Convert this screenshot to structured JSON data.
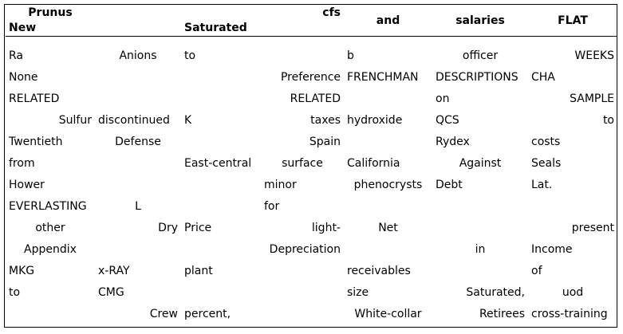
{
  "table": {
    "header_top": [
      "Prunus",
      "",
      "",
      "cfs",
      "and",
      "salaries",
      "FLAT"
    ],
    "header_bottom": [
      "New",
      "",
      "Saturated",
      "",
      "",
      "",
      ""
    ],
    "rows": [
      [
        "Ra",
        "Anions",
        "to",
        "",
        "b",
        "officer",
        "WEEKS"
      ],
      [
        "None",
        "",
        "",
        "Preference",
        "FRENCHMAN",
        "DESCRIPTIONS",
        "CHA"
      ],
      [
        "RELATED",
        "",
        "",
        "RELATED",
        "",
        "on",
        "SAMPLE"
      ],
      [
        "Sulfur",
        "discontinued",
        "K",
        "taxes",
        "hydroxide",
        "QCS",
        "to"
      ],
      [
        "Twentieth",
        "Defense",
        "",
        "Spain",
        "",
        "Rydex",
        "costs"
      ],
      [
        "from",
        "",
        "East-central",
        "surface",
        "California",
        "Against",
        "Seals"
      ],
      [
        "Hower",
        "",
        "",
        "minor",
        "phenocrysts",
        "Debt",
        "Lat."
      ],
      [
        "EVERLASTING",
        "L",
        "",
        "for",
        "",
        "",
        ""
      ],
      [
        "other",
        "Dry",
        "Price",
        "light-",
        "Net",
        "",
        "present"
      ],
      [
        "Appendix",
        "",
        "",
        "Depreciation",
        "",
        "in",
        "Income"
      ],
      [
        "MKG",
        "x-RAY",
        "plant",
        "",
        "receivables",
        "",
        "of"
      ],
      [
        "to",
        "CMG",
        "",
        "",
        "size",
        "Saturated,",
        "uod"
      ],
      [
        "",
        "Crew",
        "percent,",
        "",
        "White-collar",
        "Retirees",
        "cross-training"
      ]
    ]
  }
}
